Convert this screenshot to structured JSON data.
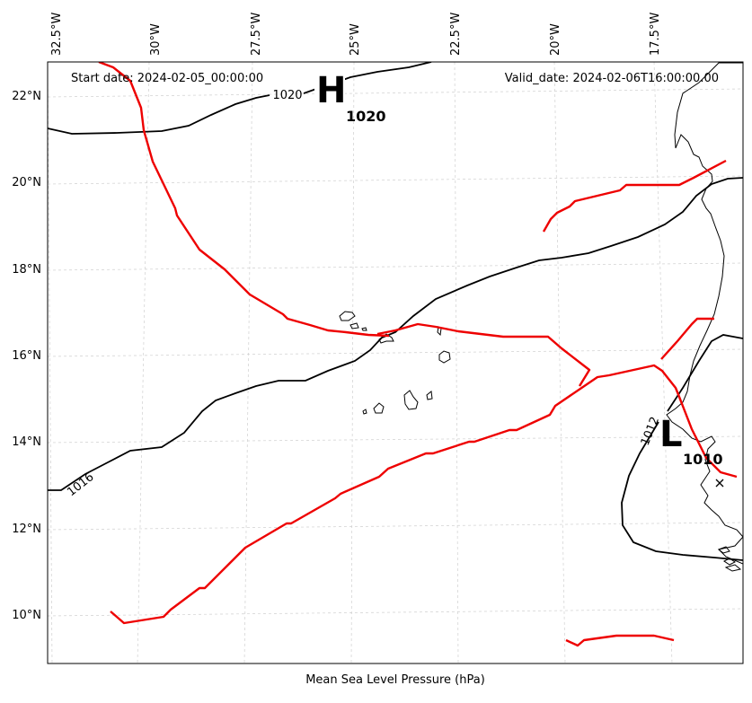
{
  "map": {
    "start_date": "Start date: 2024-02-05_00:00:00",
    "valid_date": "Valid_date: 2024-02-06T16:00:00.00",
    "caption": "Mean Sea Level Pressure (hPa)",
    "lon_labels": [
      "32.5°W",
      "30°W",
      "27.5°W",
      "25°W",
      "22.5°W",
      "20°W",
      "17.5°W"
    ],
    "lat_labels": [
      "22°N",
      "20°N",
      "18°N",
      "16°N",
      "14°N",
      "12°N",
      "10°N"
    ],
    "isobar_labels": [
      "1020",
      "1016",
      "1012"
    ],
    "high_center": {
      "letter": "H",
      "value": "1020"
    },
    "low_center": {
      "letter": "L",
      "value": "1010"
    },
    "colors": {
      "isobar": "#000000",
      "front": "#ee0000",
      "grid": "#cfcfcf"
    }
  }
}
